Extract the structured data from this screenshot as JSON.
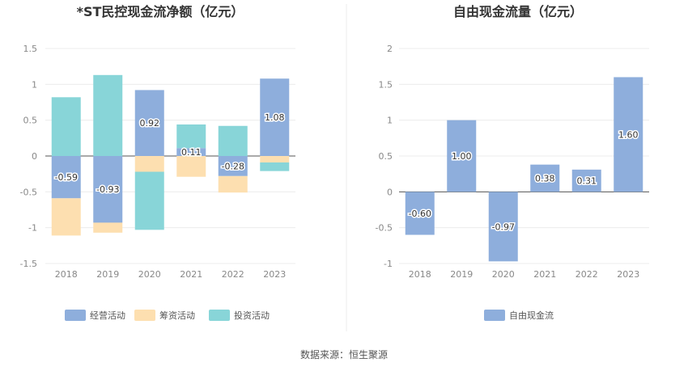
{
  "source": "数据来源：恒生聚源",
  "chart_data": [
    {
      "type": "bar",
      "stacked": true,
      "title": "*ST民控现金流净额（亿元）",
      "categories": [
        "2018",
        "2019",
        "2020",
        "2021",
        "2022",
        "2023"
      ],
      "ylim": [
        -1.5,
        1.5
      ],
      "yticks": [
        "1.5",
        "1",
        "0.5",
        "0",
        "-0.5",
        "-1",
        "-1.5"
      ],
      "grid": true,
      "legend_position": "bottom",
      "series": [
        {
          "name": "经营活动",
          "color": "#8eaedc",
          "values": [
            -0.59,
            -0.93,
            0.92,
            0.11,
            -0.28,
            1.08
          ],
          "labels": [
            "-0.59",
            "-0.93",
            "0.92",
            "0.11",
            "-0.28",
            "1.08"
          ]
        },
        {
          "name": "筹资活动",
          "color": "#fddfb0",
          "values": [
            -0.52,
            -0.14,
            -0.22,
            -0.29,
            -0.23,
            -0.09
          ]
        },
        {
          "name": "投资活动",
          "color": "#88d5d8",
          "values": [
            0.82,
            1.13,
            -0.81,
            0.33,
            0.42,
            -0.12
          ]
        }
      ]
    },
    {
      "type": "bar",
      "title": "自由现金流量（亿元）",
      "categories": [
        "2018",
        "2019",
        "2020",
        "2021",
        "2022",
        "2023"
      ],
      "ylim": [
        -1,
        2
      ],
      "yticks": [
        "2",
        "1.5",
        "1",
        "0.5",
        "0",
        "-0.5",
        "-1"
      ],
      "grid": true,
      "legend_position": "bottom",
      "series": [
        {
          "name": "自由现金流",
          "color": "#8eaedc",
          "values": [
            -0.6,
            1.0,
            -0.97,
            0.38,
            0.31,
            1.6
          ],
          "labels": [
            "-0.60",
            "1.00",
            "-0.97",
            "0.38",
            "0.31",
            "1.60"
          ]
        }
      ]
    }
  ]
}
